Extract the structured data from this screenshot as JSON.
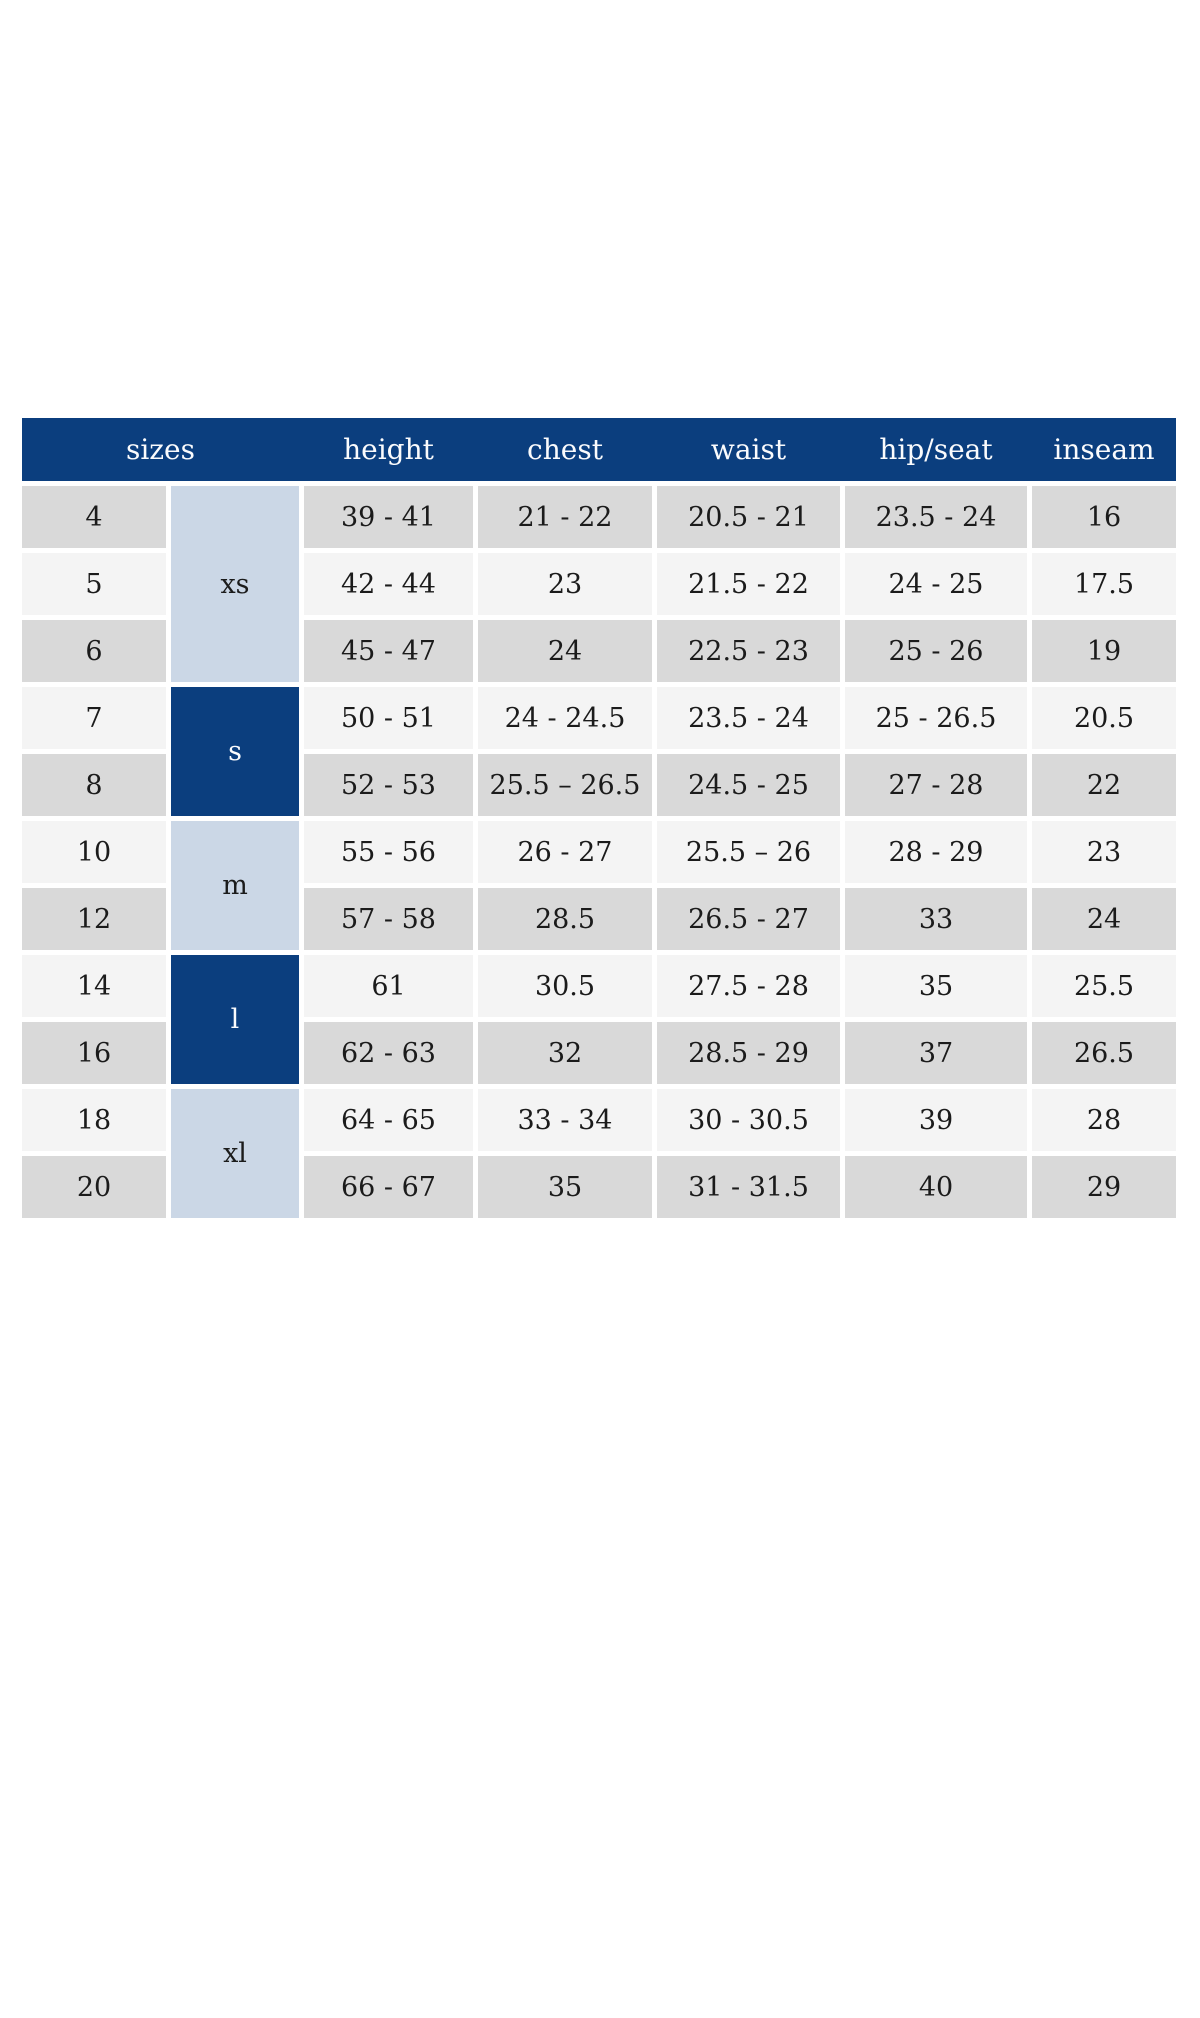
{
  "table": {
    "header": {
      "sizes": "sizes",
      "height": "height",
      "chest": "chest",
      "waist": "waist",
      "hip_seat": "hip/seat",
      "inseam": "inseam"
    },
    "groups": [
      {
        "label": "xs",
        "row_span": 3,
        "variant": "light"
      },
      {
        "label": "s",
        "row_span": 2,
        "variant": "dark"
      },
      {
        "label": "m",
        "row_span": 2,
        "variant": "light"
      },
      {
        "label": "l",
        "row_span": 2,
        "variant": "dark"
      },
      {
        "label": "xl",
        "row_span": 2,
        "variant": "light"
      }
    ],
    "rows": [
      {
        "size": "4",
        "height": "39 - 41",
        "chest": "21 - 22",
        "waist": "20.5 - 21",
        "hip_seat": "23.5 - 24",
        "inseam": "16"
      },
      {
        "size": "5",
        "height": "42 - 44",
        "chest": "23",
        "waist": "21.5 - 22",
        "hip_seat": "24 - 25",
        "inseam": "17.5"
      },
      {
        "size": "6",
        "height": "45 - 47",
        "chest": "24",
        "waist": "22.5 - 23",
        "hip_seat": "25 - 26",
        "inseam": "19"
      },
      {
        "size": "7",
        "height": "50 - 51",
        "chest": "24 - 24.5",
        "waist": "23.5 - 24",
        "hip_seat": "25 - 26.5",
        "inseam": "20.5"
      },
      {
        "size": "8",
        "height": "52 - 53",
        "chest": "25.5 – 26.5",
        "waist": "24.5 - 25",
        "hip_seat": "27 - 28",
        "inseam": "22"
      },
      {
        "size": "10",
        "height": "55 - 56",
        "chest": "26 - 27",
        "waist": "25.5 – 26",
        "hip_seat": "28 - 29",
        "inseam": "23"
      },
      {
        "size": "12",
        "height": "57 - 58",
        "chest": "28.5",
        "waist": "26.5 - 27",
        "hip_seat": "33",
        "inseam": "24"
      },
      {
        "size": "14",
        "height": "61",
        "chest": "30.5",
        "waist": "27.5 - 28",
        "hip_seat": "35",
        "inseam": "25.5"
      },
      {
        "size": "16",
        "height": "62 - 63",
        "chest": "32",
        "waist": "28.5 - 29",
        "hip_seat": "37",
        "inseam": "26.5"
      },
      {
        "size": "18",
        "height": "64 - 65",
        "chest": "33 - 34",
        "waist": "30 - 30.5",
        "hip_seat": "39",
        "inseam": "28"
      },
      {
        "size": "20",
        "height": "66 - 67",
        "chest": "35",
        "waist": "31 - 31.5",
        "hip_seat": "40",
        "inseam": "29"
      }
    ]
  },
  "colors": {
    "dark_blue": "#0b3e7e",
    "light_blue": "#cbd7e6",
    "row_gray": "#d9d9d9",
    "row_light": "#f4f4f4",
    "body_text": "#1b1b1b",
    "header_text": "#fafbfd"
  }
}
